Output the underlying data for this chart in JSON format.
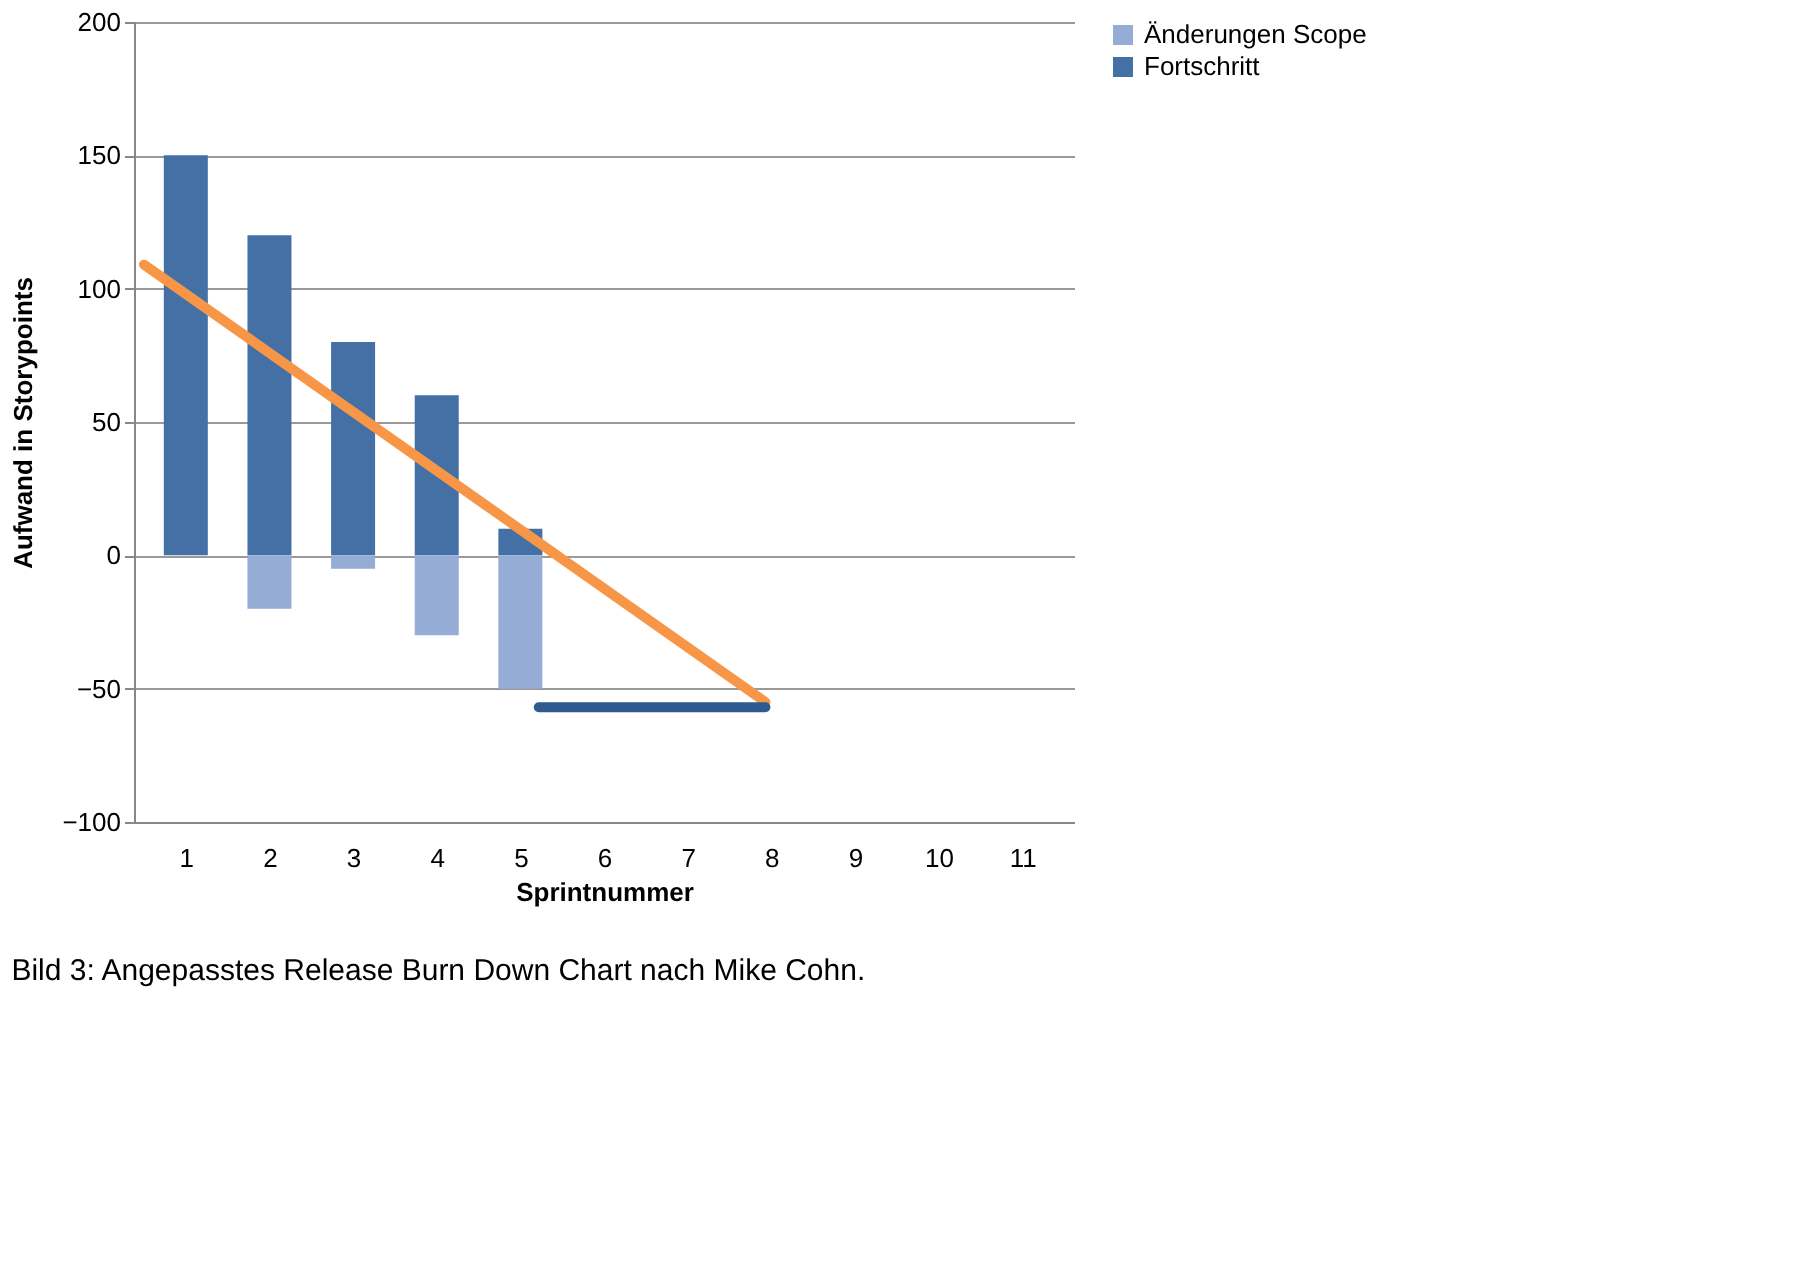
{
  "chart_data": {
    "type": "bar",
    "stacked": true,
    "xlabel": "Sprintnummer",
    "ylabel": "Aufwand in Storypoints",
    "x": [
      1,
      2,
      3,
      4,
      5
    ],
    "xlim": [
      0.5,
      11.5
    ],
    "xticks": [
      1,
      2,
      3,
      4,
      5,
      6,
      7,
      8,
      9,
      10,
      11
    ],
    "ylim": [
      -100,
      200
    ],
    "yticks": [
      -100,
      -50,
      0,
      50,
      100,
      150,
      200
    ],
    "series": [
      {
        "name": "Fortschritt",
        "color": "#4470a6",
        "values": [
          150,
          120,
          80,
          60,
          10
        ]
      },
      {
        "name": "Änderungen Scope",
        "color": "#94acd6",
        "values": [
          null,
          -20,
          -5,
          -30,
          -50
        ]
      },
      {
        "type": "line",
        "color": "#f79646",
        "x": [
          0.5,
          7.93
        ],
        "values": [
          109,
          -55
        ]
      },
      {
        "type": "line",
        "color": "#2f5a8f",
        "x": [
          5.22,
          7.93
        ],
        "values": [
          -57,
          -57
        ]
      }
    ],
    "grid": "y",
    "legend": "right",
    "annotations": [
      "Bild 3: Angepasstes Release Burn Down Chart nach Mike Cohn."
    ]
  }
}
